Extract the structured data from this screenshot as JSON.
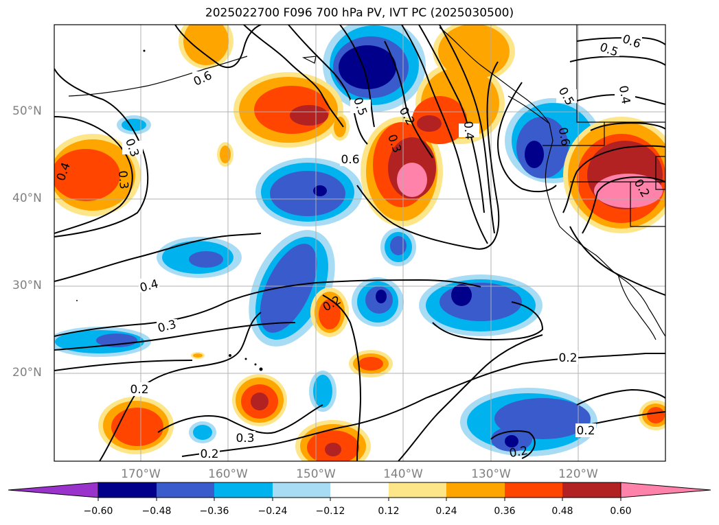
{
  "title": "2025022700 F096 700 hPa PV, IVT PC (2025030500)",
  "lat_labels": [
    "50°N",
    "40°N",
    "30°N",
    "20°N"
  ],
  "lon_labels": [
    "170°W",
    "160°W",
    "150°W",
    "140°W",
    "130°W",
    "120°W"
  ],
  "colorbar": {
    "ticks": [
      "−0.60",
      "−0.48",
      "−0.36",
      "−0.24",
      "−0.12",
      "0.12",
      "0.24",
      "0.36",
      "0.48",
      "0.60"
    ],
    "colors": [
      "#9933cc",
      "#00008b",
      "#3a5bcc",
      "#00b2ee",
      "#a8dcf5",
      "#ffffff",
      "#fde68a",
      "#ffa500",
      "#ff4500",
      "#b22222",
      "#ff82ab"
    ],
    "extend": "both"
  },
  "contour_labels": [
    "0.6",
    "0.5",
    "0.6",
    "0.5",
    "0.4",
    "0.6",
    "0.5",
    "0.2",
    "0.3",
    "0.4",
    "0.6",
    "0.3",
    "0.3",
    "0.4",
    "0.4",
    "0.3",
    "0.2",
    "0.2",
    "0.2",
    "0.3",
    "0.2",
    "0.2",
    "0.2",
    "0.2"
  ],
  "fill_colors": {
    "white": "#ffffff",
    "light_blue": "#a8dcf5",
    "cyan": "#00b2ee",
    "medium_blue": "#3a5bcc",
    "navy": "#00008b",
    "yellow": "#fde68a",
    "orange": "#ffa500",
    "red_orange": "#ff4500",
    "firebrick": "#b22222",
    "pink": "#ff82ab"
  }
}
